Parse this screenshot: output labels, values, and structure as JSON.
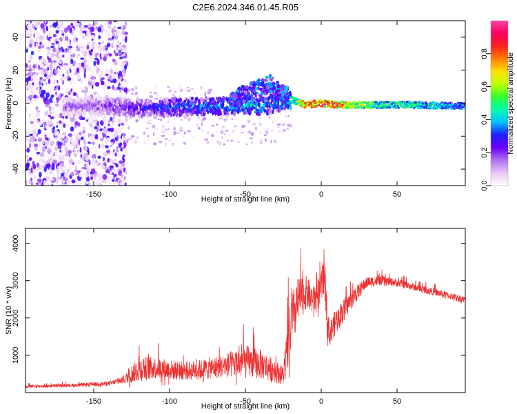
{
  "title": "C2E6.2024.346.01.45.R05",
  "chart_data": [
    {
      "type": "heatmap",
      "name": "spectrogram",
      "xlabel": "Height of straight line (km)",
      "ylabel": "Frequency (Hz)",
      "xlim": [
        -195,
        95
      ],
      "ylim": [
        -50,
        50
      ],
      "xticks": [
        -150,
        -100,
        -50,
        0,
        50
      ],
      "yticks": [
        -40,
        -20,
        0,
        20,
        40
      ],
      "colorbar": {
        "label": "Normalized spectral amplitude",
        "range": [
          0,
          1
        ],
        "ticks": [
          0.0,
          0.2,
          0.4,
          0.6,
          0.8
        ],
        "tick_labels": [
          "0.0",
          "0.2",
          "0.4",
          "0.6",
          "0.8"
        ],
        "colormap": [
          "#ffffff",
          "#e6c8f5",
          "#b070f0",
          "#6a00ff",
          "#2020ff",
          "#00c0ff",
          "#00ffb0",
          "#30ff30",
          "#c0ff00",
          "#ffe000",
          "#ff8000",
          "#ff2020",
          "#ff0060",
          "#ff40a0"
        ]
      },
      "signal_path": {
        "x": [
          -160,
          -140,
          -120,
          -100,
          -80,
          -60,
          -50,
          -40,
          -30,
          -20,
          -10,
          0,
          10,
          20,
          40,
          60,
          80,
          95
        ],
        "y": [
          -2,
          -2,
          -3,
          -2.5,
          -2,
          -1.5,
          -1,
          -2,
          0,
          2,
          -1,
          0,
          -1,
          -1,
          -1,
          -1,
          -1.5,
          -1.5
        ],
        "amplitude": [
          0.2,
          0.25,
          0.3,
          0.35,
          0.4,
          0.42,
          0.45,
          0.45,
          0.4,
          0.5,
          0.85,
          0.9,
          0.9,
          0.7,
          0.55,
          0.55,
          0.45,
          0.4
        ]
      },
      "noise_region_x": [
        -195,
        -128
      ]
    },
    {
      "type": "line",
      "name": "snr",
      "xlabel": "Height of straight line (km)",
      "ylabel": "SNR (10 * v/v)",
      "xlim": [
        -195,
        95
      ],
      "ylim": [
        0,
        4400
      ],
      "xticks": [
        -150,
        -100,
        -50,
        0,
        50
      ],
      "yticks": [
        1000,
        2000,
        3000,
        4000
      ],
      "line_color": "#ee3030",
      "envelope": {
        "x": [
          -195,
          -180,
          -160,
          -140,
          -130,
          -125,
          -120,
          -110,
          -100,
          -90,
          -80,
          -70,
          -60,
          -50,
          -40,
          -30,
          -25,
          -22,
          -20,
          -15,
          -10,
          -5,
          0,
          2,
          5,
          10,
          20,
          30,
          40,
          50,
          60,
          70,
          80,
          95
        ],
        "baseline": [
          150,
          160,
          180,
          220,
          300,
          400,
          500,
          550,
          500,
          480,
          500,
          550,
          600,
          650,
          600,
          450,
          350,
          900,
          1500,
          2200,
          2500,
          2300,
          2600,
          3000,
          1400,
          1800,
          2400,
          2900,
          2950,
          2900,
          2800,
          2700,
          2600,
          2450
        ],
        "spread": [
          80,
          80,
          100,
          120,
          200,
          500,
          700,
          600,
          550,
          500,
          550,
          600,
          700,
          900,
          800,
          600,
          500,
          1500,
          1600,
          1300,
          900,
          800,
          900,
          1300,
          700,
          700,
          500,
          300,
          250,
          220,
          200,
          200,
          200,
          180
        ]
      }
    }
  ]
}
